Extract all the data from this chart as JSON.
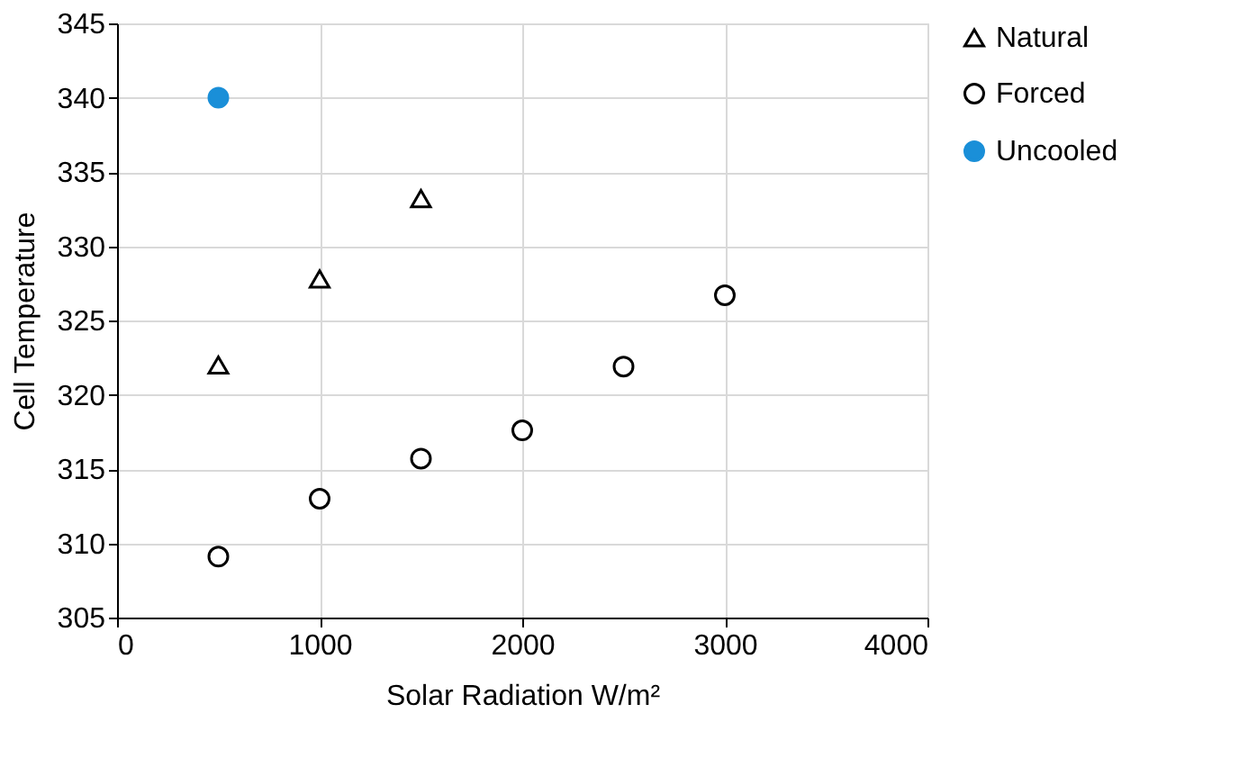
{
  "chart_data": {
    "type": "scatter",
    "xlabel": "Solar Radiation W/m²",
    "ylabel": "Cell Temperature",
    "xlim": [
      0,
      4000
    ],
    "xticks": [
      0,
      1000,
      2000,
      3000,
      4000
    ],
    "ylim": [
      305,
      345
    ],
    "yticks": [
      305,
      310,
      315,
      320,
      325,
      330,
      335,
      340,
      345
    ],
    "grid": true,
    "legend": "right",
    "series": [
      {
        "name": "Natural",
        "color": "#000000",
        "marker": "triangle",
        "x": [
          500,
          1000,
          1500
        ],
        "values": [
          322.0,
          327.8,
          333.2
        ]
      },
      {
        "name": "Forced",
        "color": "#000000",
        "marker": "circle",
        "x": [
          500,
          1000,
          1500,
          2000,
          2500,
          3000
        ],
        "values": [
          309.1,
          313.0,
          315.7,
          317.6,
          321.9,
          326.7
        ]
      },
      {
        "name": "Uncooled",
        "color": "#1a8fd8",
        "marker": "circle",
        "x": [
          500
        ],
        "values": [
          340.0
        ]
      }
    ]
  }
}
